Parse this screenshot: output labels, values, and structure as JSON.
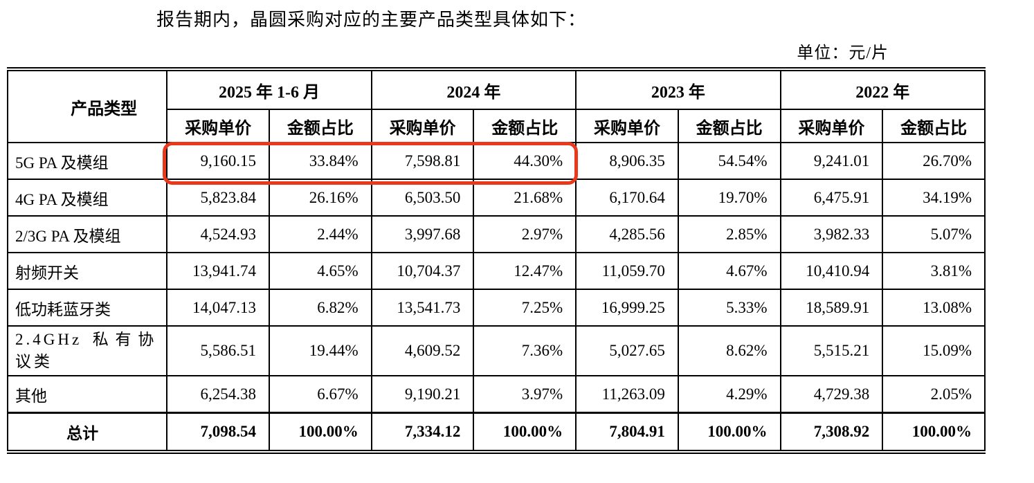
{
  "page": {
    "intro_text": "报告期内，晶圆采购对应的主要产品类型具体如下：",
    "unit_label": "单位：元/片"
  },
  "table": {
    "corner_header": "产品类型",
    "period_headers": [
      "2025 年 1-6 月",
      "2024 年",
      "2023 年",
      "2022 年"
    ],
    "sub_headers": [
      "采购单价",
      "金额占比"
    ],
    "rows": [
      {
        "label": "5G PA 及模组",
        "values": [
          "9,160.15",
          "33.84%",
          "7,598.81",
          "44.30%",
          "8,906.35",
          "54.54%",
          "9,241.01",
          "26.70%"
        ]
      },
      {
        "label": "4G PA 及模组",
        "values": [
          "5,823.84",
          "26.16%",
          "6,503.50",
          "21.68%",
          "6,170.64",
          "19.70%",
          "6,475.91",
          "34.19%"
        ]
      },
      {
        "label": "2/3G PA 及模组",
        "values": [
          "4,524.93",
          "2.44%",
          "3,997.68",
          "2.97%",
          "4,285.56",
          "2.85%",
          "3,982.33",
          "5.07%"
        ]
      },
      {
        "label": "射频开关",
        "values": [
          "13,941.74",
          "4.65%",
          "10,704.37",
          "12.47%",
          "11,059.70",
          "4.67%",
          "10,410.94",
          "3.81%"
        ]
      },
      {
        "label": "低功耗蓝牙类",
        "values": [
          "14,047.13",
          "6.82%",
          "13,541.73",
          "7.25%",
          "16,999.25",
          "5.33%",
          "18,589.91",
          "13.08%"
        ]
      },
      {
        "label": "2.4GHz 私有协议类",
        "values": [
          "5,586.51",
          "19.44%",
          "4,609.52",
          "7.36%",
          "5,027.65",
          "8.62%",
          "5,515.21",
          "15.09%"
        ]
      },
      {
        "label": "其他",
        "values": [
          "6,254.38",
          "6.67%",
          "9,190.21",
          "3.97%",
          "11,263.09",
          "4.29%",
          "4,729.38",
          "2.05%"
        ]
      }
    ],
    "total_row": {
      "label": "总计",
      "values": [
        "7,098.54",
        "100.00%",
        "7,334.12",
        "100.00%",
        "7,804.91",
        "100.00%",
        "7,308.92",
        "100.00%"
      ]
    }
  },
  "annotation": {
    "highlight_color": "#e8391d"
  }
}
